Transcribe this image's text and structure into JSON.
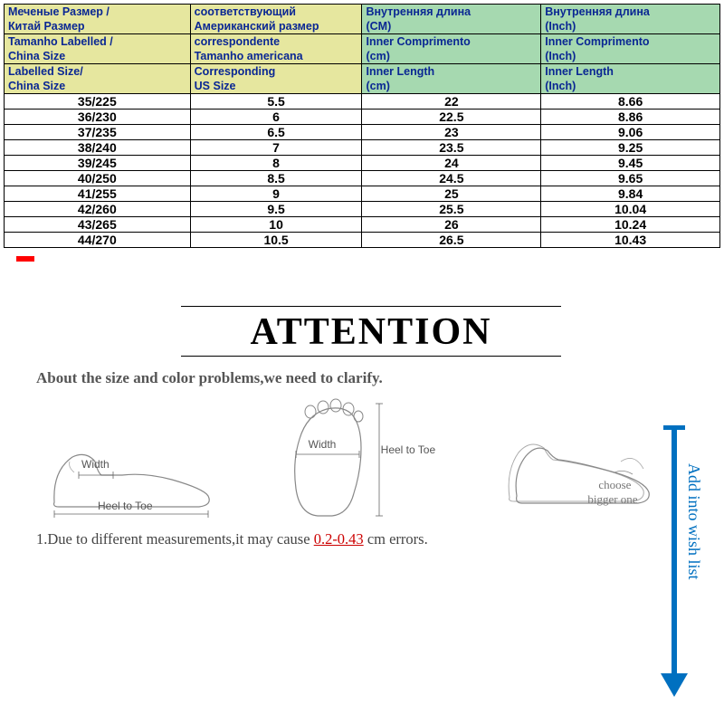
{
  "table": {
    "header_colors": {
      "yellow": "#e6e79f",
      "green": "#a6d9b0",
      "text": "#0a2793"
    },
    "columns": [
      {
        "ru1": "Меченые Размер /",
        "ru2": "Китай Размер",
        "pt1": "Tamanho Labelled /",
        "pt2": "China Size",
        "en1": "Labelled Size/",
        "en2": "China Size",
        "bg": "yellow"
      },
      {
        "ru1": "соответствующий",
        "ru2": "Американский размер",
        "pt1": "correspondente",
        "pt2": "Tamanho americana",
        "en1": "Corresponding",
        "en2": "US Size",
        "bg": "yellow"
      },
      {
        "ru1": "Внутренняя длина",
        "ru2": "(CM)",
        "pt1": "Inner Comprimento",
        "pt2": "(cm)",
        "en1": "Inner Length",
        "en2": "(cm)",
        "bg": "green"
      },
      {
        "ru1": "Внутренняя длина",
        "ru2": "(Inch)",
        "pt1": "Inner Comprimento",
        "pt2": "(Inch)",
        "en1": "Inner Length",
        "en2": "(Inch)",
        "bg": "green"
      }
    ],
    "rows": [
      [
        "35/225",
        "5.5",
        "22",
        "8.66"
      ],
      [
        "36/230",
        "6",
        "22.5",
        "8.86"
      ],
      [
        "37/235",
        "6.5",
        "23",
        "9.06"
      ],
      [
        "38/240",
        "7",
        "23.5",
        "9.25"
      ],
      [
        "39/245",
        "8",
        "24",
        "9.45"
      ],
      [
        "40/250",
        "8.5",
        "24.5",
        "9.65"
      ],
      [
        "41/255",
        "9",
        "25",
        "9.84"
      ],
      [
        "42/260",
        "9.5",
        "25.5",
        "10.04"
      ],
      [
        "43/265",
        "10",
        "26",
        "10.24"
      ],
      [
        "44/270",
        "10.5",
        "26.5",
        "10.43"
      ]
    ]
  },
  "attention": {
    "title": "ATTENTION",
    "clarify": "About the size and color problems,we need to clarify.",
    "footnote_prefix": "1.Due to different measurements,it may cause ",
    "footnote_highlight": "0.2-0.43",
    "footnote_suffix": " cm errors.",
    "arrow_label": "Add into wish list",
    "arrow_color": "#0070c0",
    "diagrams": {
      "d1_width": "Width",
      "d1_heel": "Heel to Toe",
      "d2_width": "Width",
      "d2_heel": "Heel to Toe",
      "d3_choose": "choose",
      "d3_bigger": "bigger one"
    }
  }
}
